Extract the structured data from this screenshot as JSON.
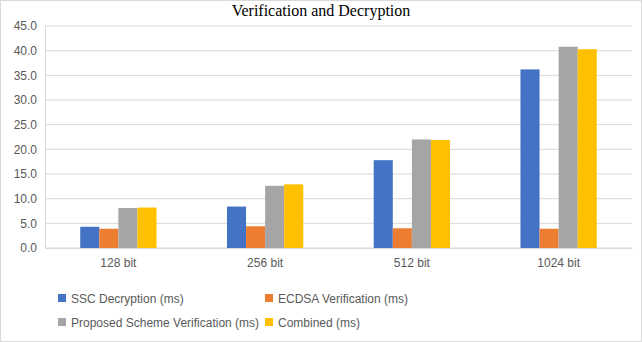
{
  "chart_data": {
    "type": "bar",
    "title": "Verification and Decryption",
    "categories": [
      "128 bit",
      "256 bit",
      "512 bit",
      "1024 bit"
    ],
    "series": [
      {
        "name": "SSC Decryption (ms)",
        "color": "#4472c4",
        "values": [
          4.3,
          8.4,
          17.8,
          36.2
        ]
      },
      {
        "name": "ECDSA Verification (ms)",
        "color": "#ed7d31",
        "values": [
          3.9,
          4.4,
          4.0,
          3.9
        ]
      },
      {
        "name": "Proposed Scheme Verification (ms)",
        "color": "#a5a5a5",
        "values": [
          8.1,
          12.6,
          22.0,
          40.8
        ]
      },
      {
        "name": "Combined (ms)",
        "color": "#ffc000",
        "values": [
          8.2,
          12.9,
          21.9,
          40.3
        ]
      }
    ],
    "ylim": [
      0,
      45
    ],
    "yticks": [
      {
        "value": 0,
        "label": "0.0"
      },
      {
        "value": 5,
        "label": "5.0"
      },
      {
        "value": 10,
        "label": "10.0"
      },
      {
        "value": 15,
        "label": "15.0"
      },
      {
        "value": 20,
        "label": "20.0"
      },
      {
        "value": 25,
        "label": "25.0"
      },
      {
        "value": 30,
        "label": "30.0"
      },
      {
        "value": 35,
        "label": "35.0"
      },
      {
        "value": 40,
        "label": "40.0"
      },
      {
        "value": 45,
        "label": "45.0"
      }
    ],
    "grid": true,
    "legend": "bottom"
  }
}
